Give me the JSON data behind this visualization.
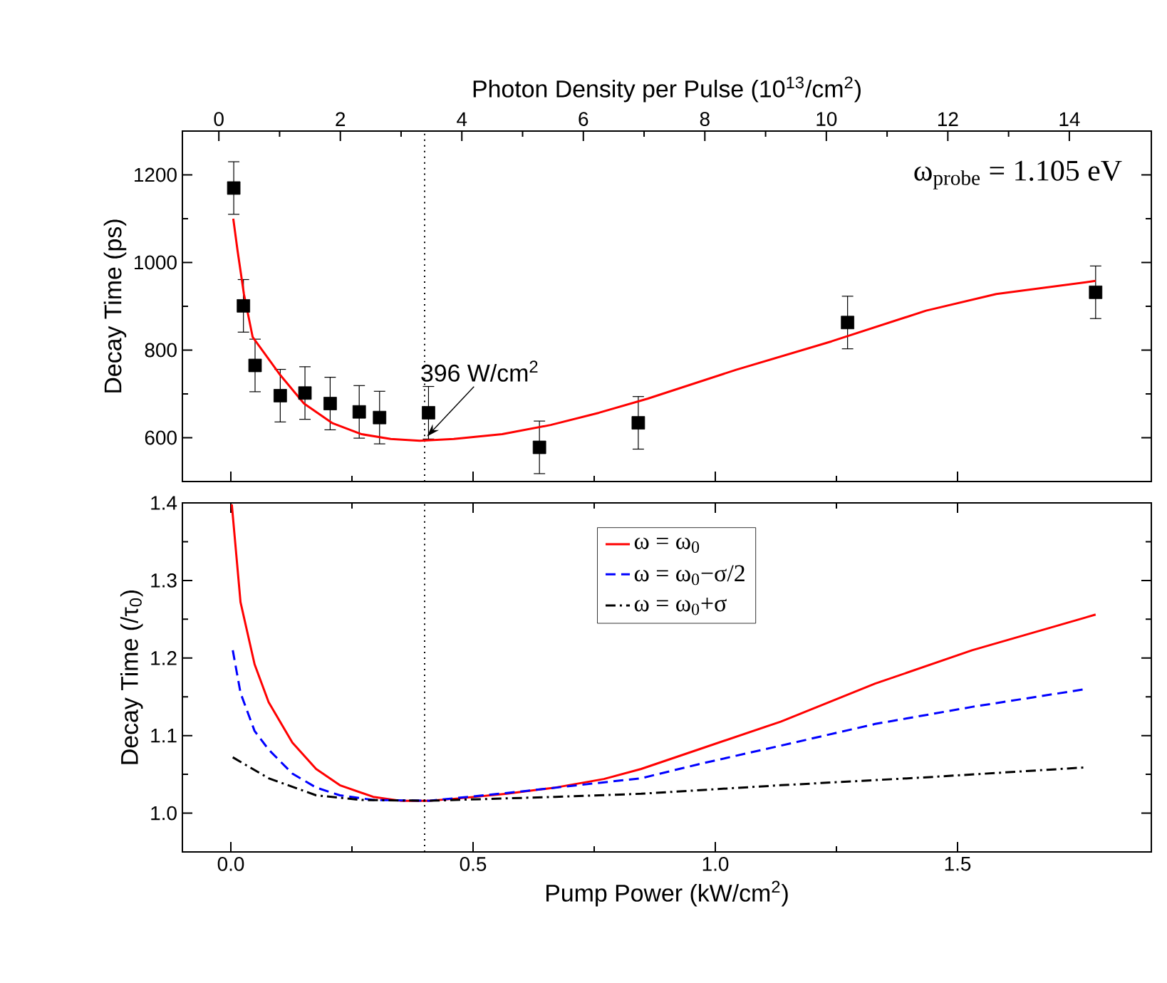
{
  "chart_data": [
    {
      "type": "scatter",
      "x2label": "Photon Density per Pulse (10$^{13}$/cm$^{2}$)",
      "ylabel": "Decay Time (ps)",
      "xlim": [
        -0.1,
        1.9
      ],
      "x2lim": [
        -0.6,
        15.35
      ],
      "x2ticks": [
        0,
        2,
        4,
        6,
        8,
        10,
        12,
        14
      ],
      "ylim": [
        500,
        1300
      ],
      "yticks": [
        600,
        800,
        1000,
        1200
      ],
      "tick_labels": "y",
      "series": [
        {
          "type": "scatter",
          "color": "#000000",
          "marker": "square",
          "x": [
            0.006,
            0.026,
            0.05,
            0.102,
            0.153,
            0.205,
            0.265,
            0.307,
            0.408,
            0.637,
            0.841,
            1.273,
            1.785
          ],
          "values": [
            1170,
            901,
            765,
            696,
            702,
            678,
            659,
            646,
            657,
            578,
            634,
            863,
            932
          ],
          "errors": [
            60,
            60,
            60,
            60,
            60,
            60,
            60,
            60,
            60,
            60,
            60,
            60,
            60
          ]
        },
        {
          "type": "line",
          "color": "#ff0000",
          "x": [
            0.005,
            0.014,
            0.027,
            0.045,
            0.102,
            0.151,
            0.21,
            0.27,
            0.33,
            0.39,
            0.46,
            0.56,
            0.66,
            0.76,
            0.86,
            1.043,
            1.24,
            1.435,
            1.58,
            1.785
          ],
          "values": [
            1100,
            1026,
            928,
            830,
            743,
            678,
            633,
            608,
            597,
            593,
            597,
            608,
            629,
            657,
            689,
            755,
            820,
            890,
            928,
            958
          ]
        }
      ],
      "ref_lines": [
        {
          "axis": "x",
          "value": 0.4,
          "color": "#000000",
          "line_style": "dotted"
        }
      ],
      "annotations": [
        {
          "text": "396 W/cm$^{2}$",
          "x": 0.396,
          "y": 593
        },
        "ω$_{probe}$ = 1.105 eV"
      ]
    },
    {
      "type": "line",
      "xlabel": "Pump Power (kW/cm$^{2}$)",
      "ylabel": "Decay Time (/τ$_{0}$)",
      "xlim": [
        -0.1,
        1.9
      ],
      "xticks": [
        {
          "value": 0,
          "label": "0.0"
        },
        0.5,
        {
          "value": 1,
          "label": "1.0"
        },
        1.5
      ],
      "ylim": [
        0.95,
        1.4
      ],
      "yticks": [
        {
          "value": 1,
          "label": "1.0"
        },
        1.1,
        1.2,
        1.3,
        1.4
      ],
      "legend": "top",
      "series": [
        {
          "name": "ω = ω$_{0}$",
          "color": "#ff0000",
          "line_style": "solid",
          "x": [
            0.002,
            0.02,
            0.049,
            0.078,
            0.127,
            0.176,
            0.225,
            0.294,
            0.35,
            0.41,
            0.47,
            0.57,
            0.67,
            0.77,
            0.847,
            0.965,
            1.135,
            1.33,
            1.53,
            1.785
          ],
          "values": [
            1.398,
            1.272,
            1.192,
            1.143,
            1.091,
            1.057,
            1.036,
            1.021,
            1.016,
            1.016,
            1.019,
            1.025,
            1.033,
            1.044,
            1.057,
            1.082,
            1.118,
            1.167,
            1.21,
            1.256
          ]
        },
        {
          "name": "ω = ω$_{0}$−σ/2",
          "color": "#0000ff",
          "line_style": "dashed",
          "x": [
            0.004,
            0.02,
            0.049,
            0.078,
            0.127,
            0.176,
            0.225,
            0.294,
            0.41,
            0.57,
            0.847,
            0.965,
            1.135,
            1.33,
            1.53,
            1.765
          ],
          "values": [
            1.21,
            1.155,
            1.106,
            1.082,
            1.051,
            1.033,
            1.023,
            1.017,
            1.016,
            1.026,
            1.045,
            1.063,
            1.087,
            1.115,
            1.137,
            1.16
          ]
        },
        {
          "name": "ω = ω$_{0}$+σ",
          "color": "#000000",
          "line_style": "dashdot",
          "x": [
            0.004,
            0.078,
            0.176,
            0.27,
            0.41,
            0.67,
            0.847,
            1.135,
            1.43,
            1.765
          ],
          "values": [
            1.072,
            1.045,
            1.023,
            1.017,
            1.016,
            1.021,
            1.025,
            1.036,
            1.046,
            1.059
          ]
        }
      ],
      "ref_lines": [
        {
          "axis": "x",
          "value": 0.4,
          "color": "#000000",
          "line_style": "dotted"
        }
      ]
    }
  ]
}
